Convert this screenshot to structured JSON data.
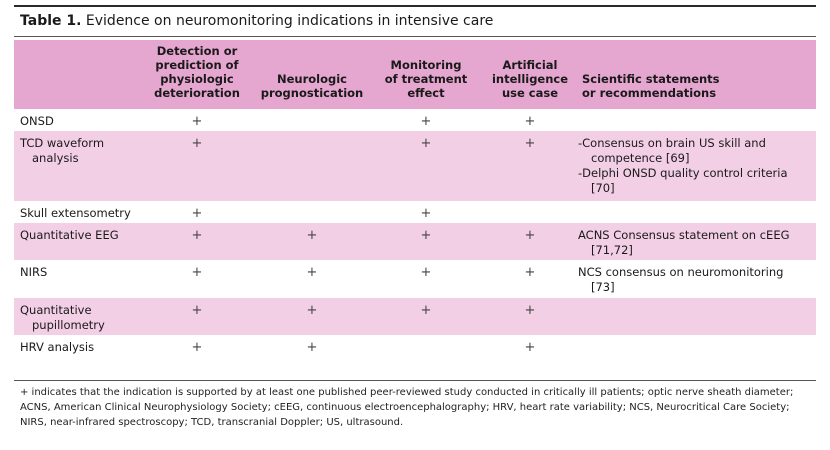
{
  "caption": {
    "label": "Table 1.",
    "text": "Evidence on neuromonitoring indications in intensive care"
  },
  "headers": [
    "",
    "Detection or prediction of physiologic deterioration",
    "Neurologic prognostication",
    "Monitoring of treatment effect",
    "Artificial intelligence use case",
    "Scientific statements or recommendations"
  ],
  "header_lines": {
    "detection": [
      "Detection or",
      "prediction of",
      "physiologic",
      "deterioration"
    ],
    "prognostication": [
      "Neurologic",
      "prognostication"
    ],
    "monitoring": [
      "Monitoring",
      "of treatment",
      "effect"
    ],
    "ai": [
      "Artificial",
      "intelligence",
      "use case"
    ],
    "statements": [
      "Scientific statements",
      "or recommendations"
    ]
  },
  "plus_symbol": "+",
  "rows": [
    {
      "name": [
        "ONSD"
      ],
      "detection": "+",
      "prognostication": "",
      "monitoring": "+",
      "ai": "+",
      "statements": []
    },
    {
      "name": [
        "TCD waveform",
        "analysis"
      ],
      "detection": "+",
      "prognostication": "",
      "monitoring": "+",
      "ai": "+",
      "statements": [
        [
          "-Consensus on brain US skill and",
          "competence [69]"
        ],
        [
          "-Delphi ONSD quality control criteria",
          "[70]"
        ]
      ]
    },
    {
      "name": [
        "Skull extensometry"
      ],
      "detection": "+",
      "prognostication": "",
      "monitoring": "+",
      "ai": "",
      "statements": []
    },
    {
      "name": [
        "Quantitative EEG"
      ],
      "detection": "+",
      "prognostication": "+",
      "monitoring": "+",
      "ai": "+",
      "statements": [
        [
          "ACNS Consensus statement on cEEG",
          "[71,72]"
        ]
      ]
    },
    {
      "name": [
        "NIRS"
      ],
      "detection": "+",
      "prognostication": "+",
      "monitoring": "+",
      "ai": "+",
      "statements": [
        [
          "NCS consensus on neuromonitoring",
          "[73]"
        ]
      ]
    },
    {
      "name": [
        "Quantitative",
        "pupillometry"
      ],
      "detection": "+",
      "prognostication": "+",
      "monitoring": "+",
      "ai": "+",
      "statements": []
    },
    {
      "name": [
        "HRV analysis"
      ],
      "detection": "+",
      "prognostication": "+",
      "monitoring": "",
      "ai": "+",
      "statements": []
    }
  ],
  "footnote": "+ indicates that the indication is supported by at least one published peer-reviewed study conducted in critically ill patients; optic nerve sheath diameter; ACNS, American Clinical Neurophysiology Society; cEEG, continuous electroencephalography; HRV, heart rate variability; NCS, Neurocritical Care Society; NIRS, near-infrared spectroscopy; TCD, transcranial Doppler; US, ultrasound.",
  "colors": {
    "header": "#e5a6cf",
    "pink_row": "#f3cfe6",
    "white_row": "#ffffff"
  }
}
